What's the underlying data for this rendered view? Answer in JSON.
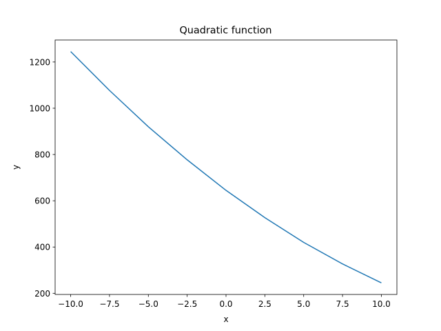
{
  "chart_data": {
    "type": "line",
    "title": "Quadratic function",
    "xlabel": "x",
    "ylabel": "y",
    "xlim": [
      -11,
      11
    ],
    "ylim": [
      195,
      1295
    ],
    "grid": false,
    "xticks": [
      -10.0,
      -7.5,
      -5.0,
      -2.5,
      0.0,
      2.5,
      5.0,
      7.5,
      10.0
    ],
    "xtick_labels": [
      "−10.0",
      "−7.5",
      "−5.0",
      "−2.5",
      "0.0",
      "2.5",
      "5.0",
      "7.5",
      "10.0"
    ],
    "yticks": [
      200,
      400,
      600,
      800,
      1000,
      1200
    ],
    "ytick_labels": [
      "200",
      "400",
      "600",
      "800",
      "1000",
      "1200"
    ],
    "series": [
      {
        "color": "#1f77b4",
        "x": [
          -10,
          -7.5,
          -5,
          -2.5,
          0,
          2.5,
          5,
          7.5,
          10
        ],
        "y": [
          1245,
          1077,
          920,
          777,
          645,
          527,
          420,
          327,
          245
        ]
      }
    ]
  }
}
